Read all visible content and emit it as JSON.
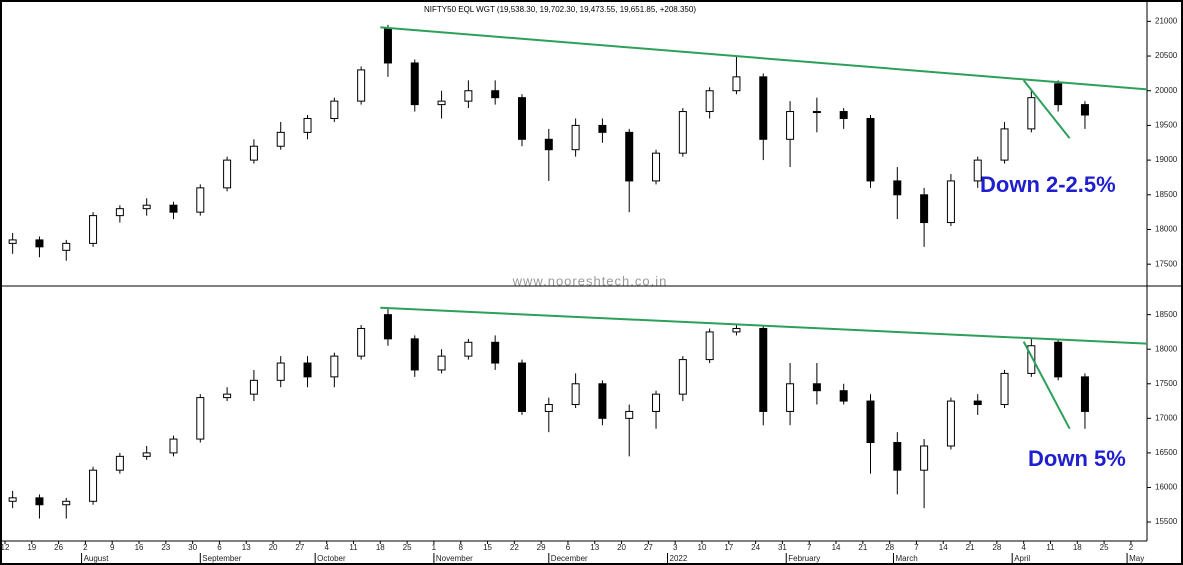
{
  "watermark": "www.nooreshtech.co.in",
  "chart_data": [
    {
      "type": "candlestick",
      "title": "NIFTY50 EQL WGT (19,538.30, 19,702.30, 19,473.55, 19,651.85, +208.350)",
      "annotation": "Down 2-2.5%",
      "x": [
        2,
        9,
        16,
        23,
        30,
        37,
        44,
        51,
        58,
        65,
        72,
        79,
        86,
        93,
        100,
        107,
        114,
        121,
        128,
        135,
        142,
        149,
        156,
        163,
        170,
        177,
        184,
        191,
        198,
        205,
        212,
        219,
        226,
        233,
        240,
        247,
        254,
        261,
        268,
        275,
        282
      ],
      "open": [
        17800,
        17850,
        17700,
        17800,
        18200,
        18300,
        18350,
        18250,
        18600,
        19000,
        19200,
        19400,
        19600,
        19850,
        20900,
        20400,
        19800,
        19850,
        20000,
        19900,
        19300,
        19150,
        19500,
        19400,
        18700,
        19100,
        19700,
        20000,
        20200,
        19300,
        19700,
        19700,
        19600,
        18700,
        18500,
        18100,
        18700,
        19000,
        19450,
        20100,
        19800
      ],
      "high": [
        17950,
        17900,
        17850,
        18250,
        18350,
        18450,
        18400,
        18650,
        19050,
        19300,
        19550,
        19650,
        19900,
        20350,
        20950,
        20450,
        20000,
        20150,
        20150,
        19950,
        19450,
        19600,
        19600,
        19450,
        19150,
        19750,
        20050,
        20500,
        20250,
        19850,
        19900,
        19750,
        19650,
        18900,
        18600,
        18800,
        19050,
        19550,
        20000,
        20150,
        19850
      ],
      "low": [
        17650,
        17600,
        17550,
        17750,
        18100,
        18200,
        18150,
        18200,
        18550,
        18950,
        19150,
        19300,
        19550,
        19800,
        20200,
        19700,
        19600,
        19750,
        19800,
        19200,
        18700,
        19050,
        19250,
        18250,
        18650,
        19050,
        19600,
        19950,
        19000,
        18900,
        19400,
        19450,
        18600,
        18150,
        17750,
        18050,
        18600,
        18950,
        19400,
        19700,
        19450
      ],
      "close": [
        17850,
        17750,
        17800,
        18200,
        18300,
        18350,
        18250,
        18600,
        19000,
        19200,
        19400,
        19600,
        19850,
        20300,
        20400,
        19800,
        19850,
        20000,
        19900,
        19300,
        19150,
        19500,
        19400,
        18700,
        19100,
        19700,
        20000,
        20200,
        19300,
        19700,
        19700,
        19600,
        18700,
        18500,
        18100,
        18700,
        19000,
        19450,
        19900,
        19800,
        19650
      ],
      "xlim": [
        -1.3,
        298.2
      ],
      "ylim": [
        17200,
        21250
      ],
      "yticks": [
        17500,
        18000,
        18500,
        19000,
        19500,
        20000,
        20500,
        21000
      ],
      "up_color": "#ffffff",
      "down_color": "#000000",
      "line_color": "#2ca05a",
      "trendlines": [
        {
          "x": [
            98,
            298.2
          ],
          "y": [
            20914,
            20020
          ]
        },
        {
          "x": [
            266,
            278
          ],
          "y": [
            20150,
            19315
          ]
        }
      ]
    },
    {
      "type": "candlestick",
      "annotation": "Down 5%",
      "x": [
        2,
        9,
        16,
        23,
        30,
        37,
        44,
        51,
        58,
        65,
        72,
        79,
        86,
        93,
        100,
        107,
        114,
        121,
        128,
        135,
        142,
        149,
        156,
        163,
        170,
        177,
        184,
        191,
        198,
        205,
        212,
        219,
        226,
        233,
        240,
        247,
        254,
        261,
        268,
        275,
        282
      ],
      "open": [
        15800,
        15850,
        15750,
        15800,
        16250,
        16450,
        16500,
        16700,
        17300,
        17350,
        17550,
        17800,
        17600,
        17900,
        18500,
        18150,
        17700,
        17900,
        18100,
        17800,
        17100,
        17200,
        17500,
        17000,
        17100,
        17350,
        17850,
        18250,
        18300,
        17100,
        17500,
        17400,
        17250,
        16650,
        16250,
        16600,
        17250,
        17200,
        17650,
        18100,
        17600
      ],
      "high": [
        15950,
        15900,
        15850,
        16300,
        16500,
        16600,
        16750,
        17350,
        17450,
        17700,
        17900,
        17900,
        17950,
        18350,
        18600,
        18200,
        18000,
        18150,
        18200,
        17850,
        17300,
        17650,
        17550,
        17200,
        17400,
        17900,
        18300,
        18350,
        18350,
        17800,
        17800,
        17500,
        17350,
        16800,
        16700,
        17300,
        17350,
        17700,
        18150,
        18150,
        17650
      ],
      "low": [
        15700,
        15550,
        15550,
        15750,
        16200,
        16400,
        16450,
        16650,
        17250,
        17250,
        17450,
        17450,
        17450,
        17850,
        18050,
        17600,
        17650,
        17850,
        17700,
        17050,
        16800,
        17150,
        16900,
        16450,
        16850,
        17250,
        17800,
        18200,
        16900,
        16900,
        17200,
        17200,
        16200,
        15900,
        15700,
        16550,
        17050,
        17150,
        17600,
        17550,
        16850
      ],
      "close": [
        15850,
        15750,
        15800,
        16250,
        16450,
        16500,
        16700,
        17300,
        17350,
        17550,
        17800,
        17600,
        17900,
        18300,
        18150,
        17700,
        17900,
        18100,
        17800,
        17100,
        17200,
        17500,
        17000,
        17100,
        17350,
        17850,
        18250,
        18300,
        17100,
        17500,
        17400,
        17250,
        16650,
        16250,
        16600,
        17250,
        17200,
        17650,
        18050,
        17600,
        17100
      ],
      "xlim": [
        -1.3,
        298.2
      ],
      "ylim": [
        15240,
        18900
      ],
      "yticks": [
        15500,
        16000,
        16500,
        17000,
        17500,
        18000,
        18500
      ],
      "up_color": "#ffffff",
      "down_color": "#000000",
      "line_color": "#2ca05a",
      "trendlines": [
        {
          "x": [
            98,
            298.2
          ],
          "y": [
            18600,
            18080
          ]
        },
        {
          "x": [
            266,
            278
          ],
          "y": [
            18110,
            16850
          ]
        }
      ],
      "xticks": [
        {
          "value": 0,
          "label": "12"
        },
        {
          "value": 7,
          "label": "19"
        },
        {
          "value": 14,
          "label": "26"
        },
        {
          "value": 21,
          "label": "2"
        },
        {
          "value": 28,
          "label": "9"
        },
        {
          "value": 35,
          "label": "16"
        },
        {
          "value": 42,
          "label": "23"
        },
        {
          "value": 49,
          "label": "30"
        },
        {
          "value": 56,
          "label": "6"
        },
        {
          "value": 63,
          "label": "13"
        },
        {
          "value": 70,
          "label": "20"
        },
        {
          "value": 77,
          "label": "27"
        },
        {
          "value": 84,
          "label": "4"
        },
        {
          "value": 91,
          "label": "11"
        },
        {
          "value": 98,
          "label": "18"
        },
        {
          "value": 105,
          "label": "25"
        },
        {
          "value": 112,
          "label": "1"
        },
        {
          "value": 119,
          "label": "8"
        },
        {
          "value": 126,
          "label": "15"
        },
        {
          "value": 133,
          "label": "22"
        },
        {
          "value": 140,
          "label": "29"
        },
        {
          "value": 147,
          "label": "6"
        },
        {
          "value": 154,
          "label": "13"
        },
        {
          "value": 161,
          "label": "20"
        },
        {
          "value": 168,
          "label": "27"
        },
        {
          "value": 175,
          "label": "3"
        },
        {
          "value": 182,
          "label": "10"
        },
        {
          "value": 189,
          "label": "17"
        },
        {
          "value": 196,
          "label": "24"
        },
        {
          "value": 203,
          "label": "31"
        },
        {
          "value": 210,
          "label": "7"
        },
        {
          "value": 217,
          "label": "14"
        },
        {
          "value": 224,
          "label": "21"
        },
        {
          "value": 231,
          "label": "28"
        },
        {
          "value": 238,
          "label": "7"
        },
        {
          "value": 245,
          "label": "14"
        },
        {
          "value": 252,
          "label": "21"
        },
        {
          "value": 259,
          "label": "28"
        },
        {
          "value": 266,
          "label": "4"
        },
        {
          "value": 273,
          "label": "11"
        },
        {
          "value": 280,
          "label": "18"
        },
        {
          "value": 287,
          "label": "25"
        },
        {
          "value": 294,
          "label": "2"
        }
      ],
      "months": [
        {
          "value": 20,
          "label": "August"
        },
        {
          "value": 51,
          "label": "September"
        },
        {
          "value": 81,
          "label": "October"
        },
        {
          "value": 112,
          "label": "November"
        },
        {
          "value": 142,
          "label": "December"
        },
        {
          "value": 173,
          "label": "2022"
        },
        {
          "value": 204,
          "label": "February"
        },
        {
          "value": 232,
          "label": "March"
        },
        {
          "value": 263,
          "label": "April"
        },
        {
          "value": 293,
          "label": "May"
        }
      ]
    }
  ]
}
